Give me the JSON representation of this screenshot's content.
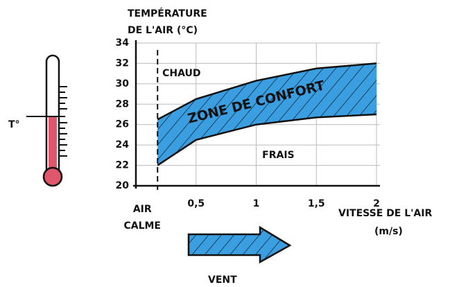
{
  "chart_data": {
    "type": "area",
    "y_label": [
      "TEMPÉRATURE",
      "DE L'AIR (°C)"
    ],
    "x_label": [
      "VITESSE DE L'AIR",
      "(m/s)"
    ],
    "band": {
      "label": "ZONE DE CONFORT",
      "color": "#3a9ee0",
      "x": [
        0.18,
        0.5,
        1,
        1.5,
        2
      ],
      "upper": [
        26.5,
        28.5,
        30.3,
        31.5,
        32
      ],
      "lower": [
        22,
        24.5,
        26,
        26.7,
        27
      ]
    },
    "regions": [
      {
        "text": "CHAUD",
        "x": 0.22,
        "y": 31
      },
      {
        "text": "FRAIS",
        "x": 1.05,
        "y": 23
      }
    ],
    "calm": {
      "lines": [
        "AIR",
        "CALME"
      ],
      "x": 0.18
    },
    "arrow_label": "VENT",
    "thermometer_label": "T°",
    "xlim": [
      0,
      2
    ],
    "xticks": [
      {
        "value": 0.5,
        "label": "0,5"
      },
      1,
      {
        "value": 1.5,
        "label": "1,5"
      },
      2
    ],
    "ylim": [
      20,
      34
    ],
    "yticks": [
      20,
      22,
      24,
      26,
      28,
      30,
      32,
      34
    ],
    "grid": true
  }
}
